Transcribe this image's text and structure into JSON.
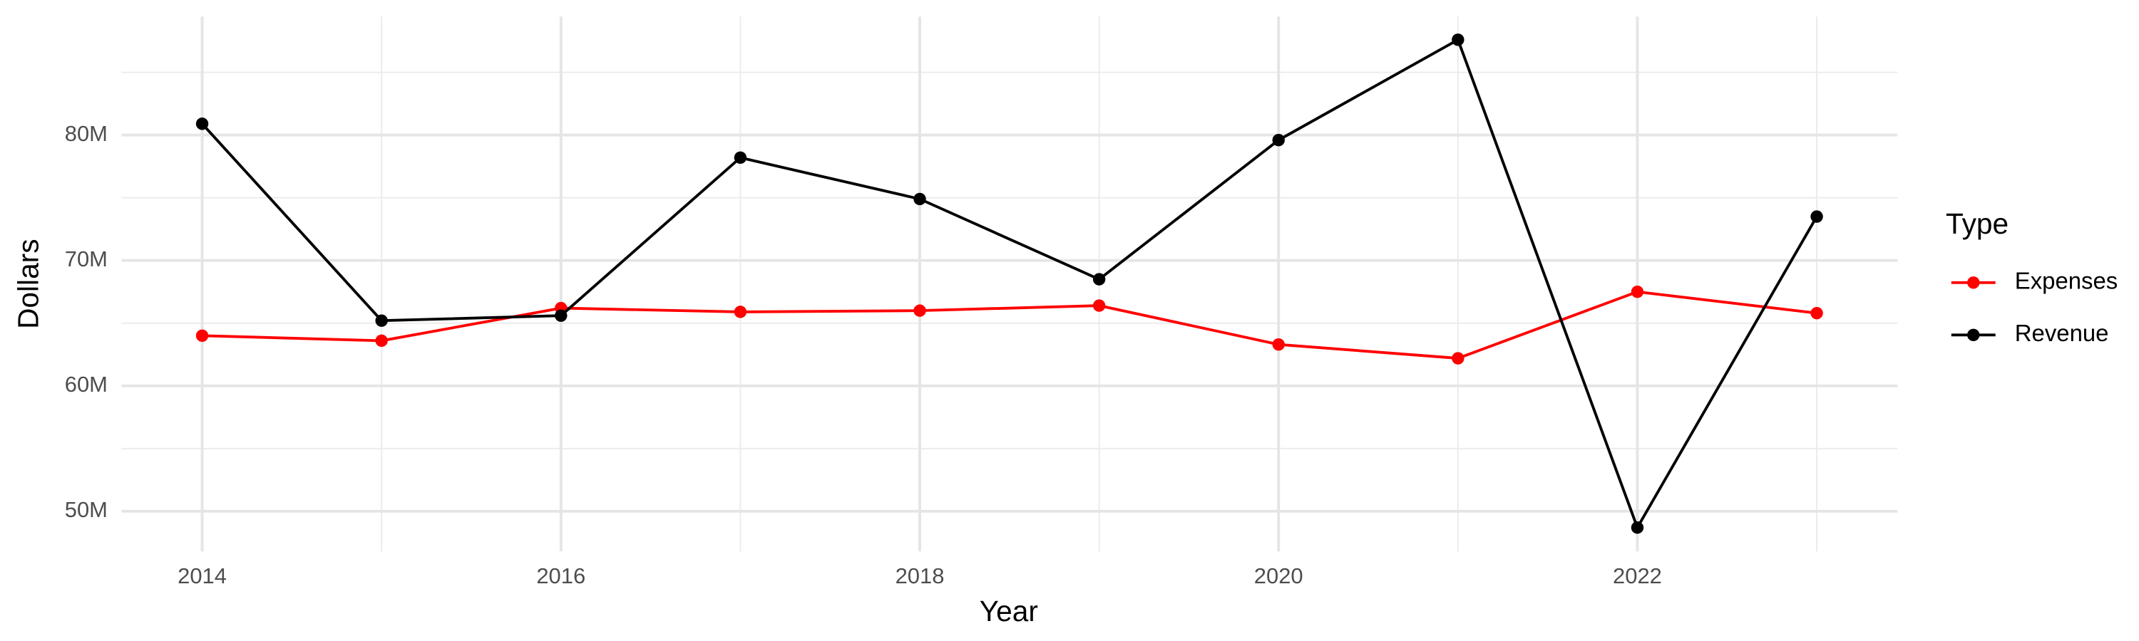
{
  "chart_data": {
    "type": "line",
    "x_label": "Year",
    "y_label": "Dollars",
    "x": [
      2014,
      2015,
      2016,
      2017,
      2018,
      2019,
      2020,
      2021,
      2022,
      2023
    ],
    "series": [
      {
        "name": "Expenses",
        "color": "#ff0000",
        "values": [
          64000000,
          63600000,
          66200000,
          65900000,
          66000000,
          66400000,
          63300000,
          62200000,
          67500000,
          65800000
        ]
      },
      {
        "name": "Revenue",
        "color": "#000000",
        "values": [
          80900000,
          65200000,
          65600000,
          78200000,
          74900000,
          68500000,
          79600000,
          87600000,
          48700000,
          73500000
        ]
      }
    ],
    "xlim": [
      2013.55,
      2023.45
    ],
    "ylim": [
      46800000,
      89450000
    ],
    "xticks": [
      2014,
      2016,
      2018,
      2020,
      2022
    ],
    "yticks": [
      {
        "value": 50000000,
        "label": "50M"
      },
      {
        "value": 60000000,
        "label": "60M"
      },
      {
        "value": 70000000,
        "label": "70M"
      },
      {
        "value": 80000000,
        "label": "80M"
      }
    ],
    "x_minor_grid": [
      2015,
      2017,
      2019,
      2021,
      2023
    ],
    "y_minor_grid": [
      55000000,
      65000000,
      75000000,
      85000000
    ],
    "grid": true,
    "legend_title": "Type",
    "legend_position": "right"
  }
}
